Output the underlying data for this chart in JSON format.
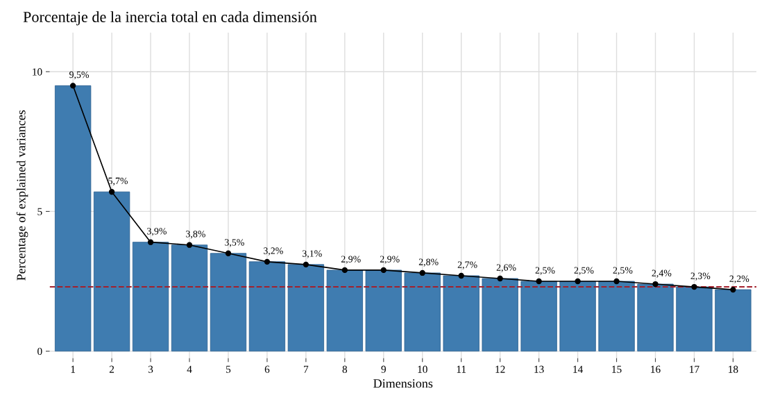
{
  "chart_data": {
    "type": "bar",
    "title": "Porcentaje de la inercia total en cada dimensión",
    "xlabel": "Dimensions",
    "ylabel": "Percentage of explained variances",
    "categories": [
      "1",
      "2",
      "3",
      "4",
      "5",
      "6",
      "7",
      "8",
      "9",
      "10",
      "11",
      "12",
      "13",
      "14",
      "15",
      "16",
      "17",
      "18"
    ],
    "series": [
      {
        "color": "#3f7cb0",
        "values": [
          9.5,
          5.7,
          3.9,
          3.8,
          3.5,
          3.2,
          3.1,
          2.9,
          2.9,
          2.8,
          2.7,
          2.6,
          2.5,
          2.5,
          2.5,
          2.4,
          2.3,
          2.2
        ]
      },
      {
        "type": "line",
        "color": "#000000",
        "marker": "circle",
        "values": [
          9.5,
          5.7,
          3.9,
          3.8,
          3.5,
          3.2,
          3.1,
          2.9,
          2.9,
          2.8,
          2.7,
          2.6,
          2.5,
          2.5,
          2.5,
          2.4,
          2.3,
          2.2
        ],
        "value_labels": [
          "9,5%",
          "5,7%",
          "3,9%",
          "3,8%",
          "3,5%",
          "3,2%",
          "3,1%",
          "2,9%",
          "2,9%",
          "2,8%",
          "2,7%",
          "2,6%",
          "2,5%",
          "2,5%",
          "2,5%",
          "2,4%",
          "2,3%",
          "2,2%"
        ]
      }
    ],
    "ref_lines": [
      {
        "axis": "y",
        "value": 2.3,
        "color": "#a3202c",
        "line_style": "dashed"
      }
    ],
    "ylim": [
      -0.25,
      11.4
    ],
    "yticks": [
      0,
      5,
      10
    ],
    "grid": true
  }
}
